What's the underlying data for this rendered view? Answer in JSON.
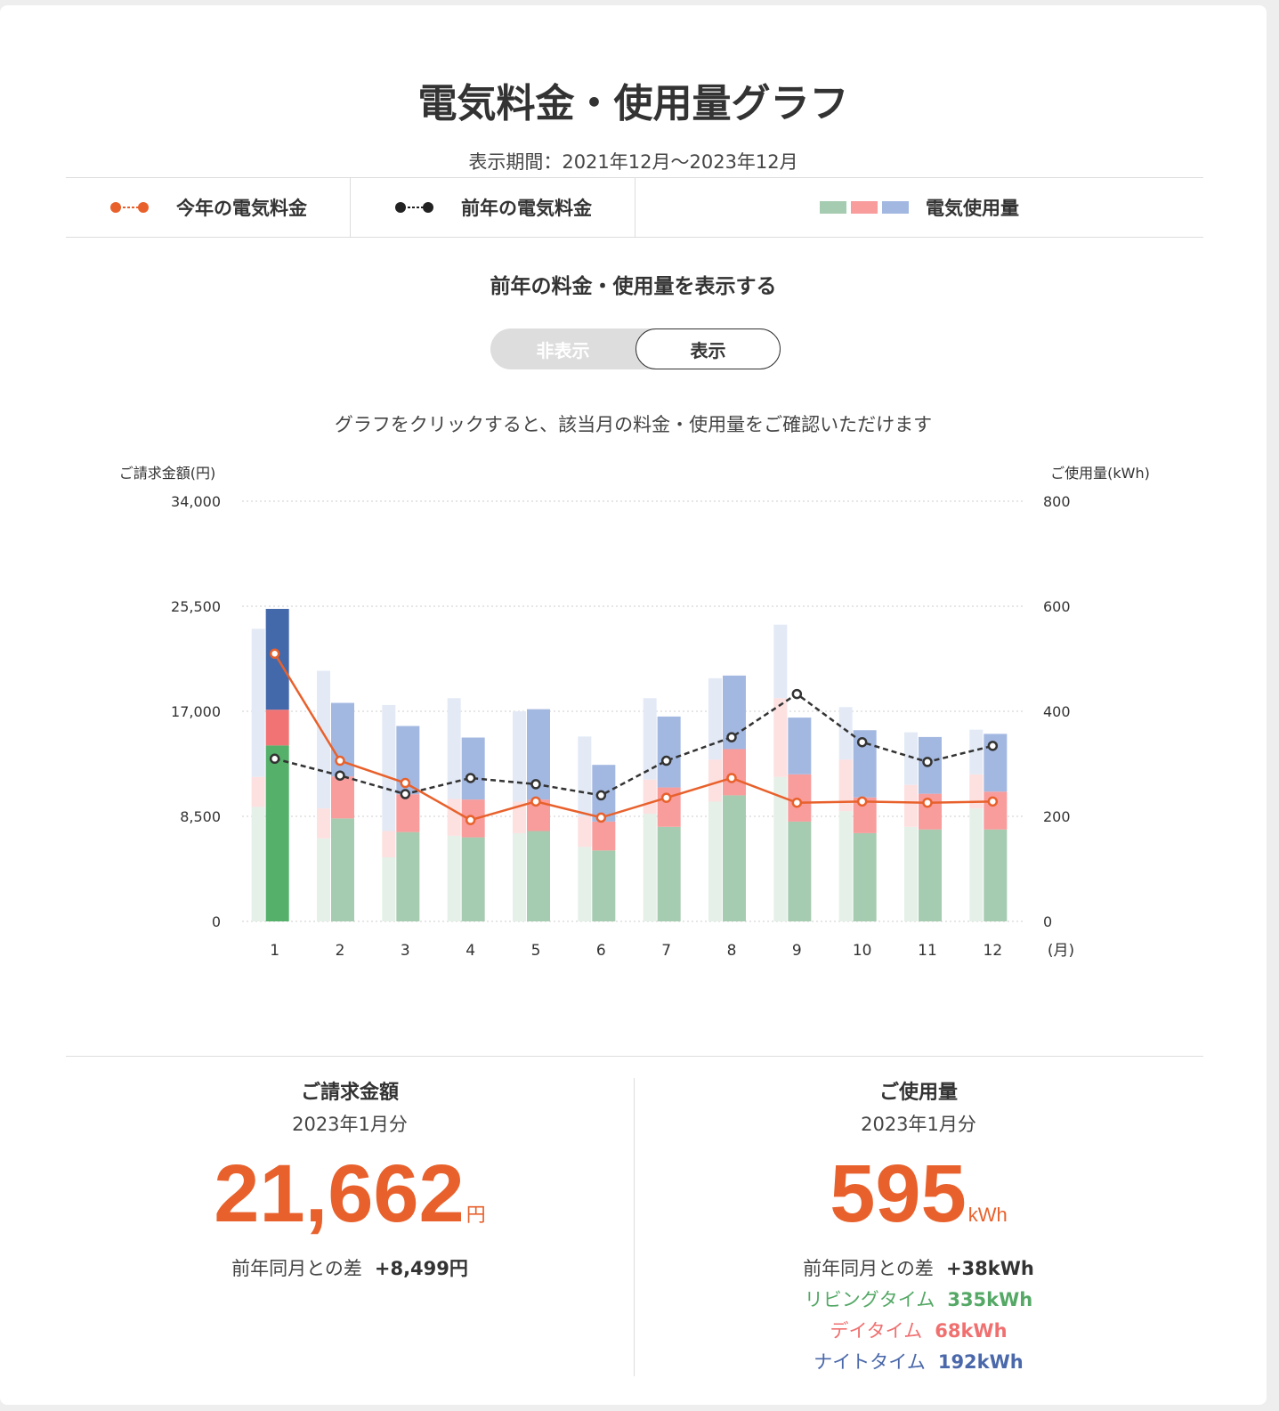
{
  "header": {
    "title": "電気料金・使用量グラフ",
    "period": "表示期間：2021年12月～2023年12月"
  },
  "legend": {
    "this_year": "今年の電気料金",
    "last_year": "前年の電気料金",
    "usage": "電気使用量"
  },
  "toggle": {
    "label": "前年の料金・使用量を表示する",
    "hide": "非表示",
    "show": "表示",
    "selected": "表示"
  },
  "hint": "グラフをクリックすると、該当月の料金・使用量をご確認いただけます",
  "colors": {
    "accent": "#e8612c",
    "living": "#a5cbb0",
    "day": "#f89c9c",
    "night": "#a3b8e1",
    "living_selected": "#55b06a",
    "day_selected": "#f27373",
    "night_selected": "#4369ab",
    "last_year_line": "#333333"
  },
  "chart_data": {
    "type": "bar",
    "ylabel_left": "ご請求金額(円)",
    "ylabel_right": "ご使用量(kWh)",
    "xunit": "(月)",
    "categories": [
      "1",
      "2",
      "3",
      "4",
      "5",
      "6",
      "7",
      "8",
      "9",
      "10",
      "11",
      "12"
    ],
    "yticks_left": [
      "0",
      "8,500",
      "17,000",
      "25,500",
      "34,000"
    ],
    "yticks_right": [
      "0",
      "200",
      "400",
      "600",
      "800"
    ],
    "ylim_left": [
      0,
      34000
    ],
    "ylim_right": [
      0,
      800
    ],
    "selected_month": "1",
    "usage_this_year": [
      {
        "name": "リビングタイム",
        "values": [
          335,
          196,
          170,
          160,
          172,
          135,
          180,
          240,
          190,
          168,
          175,
          175
        ]
      },
      {
        "name": "デイタイム",
        "values": [
          68,
          80,
          72,
          72,
          60,
          55,
          75,
          88,
          90,
          68,
          68,
          72
        ]
      },
      {
        "name": "ナイトタイム",
        "values": [
          192,
          140,
          130,
          118,
          172,
          108,
          135,
          140,
          108,
          128,
          108,
          110
        ]
      }
    ],
    "usage_last_year": [
      {
        "name": "リビングタイム",
        "values": [
          218,
          158,
          122,
          163,
          168,
          142,
          205,
          228,
          275,
          210,
          180,
          215
        ]
      },
      {
        "name": "デイタイム",
        "values": [
          57,
          57,
          50,
          70,
          60,
          58,
          65,
          80,
          150,
          98,
          80,
          65
        ]
      },
      {
        "name": "ナイトタイム",
        "values": [
          282,
          262,
          240,
          192,
          172,
          152,
          155,
          155,
          140,
          100,
          100,
          85
        ]
      }
    ],
    "series": [
      {
        "name": "今年の電気料金",
        "values": [
          21662,
          13000,
          11200,
          8200,
          9700,
          8400,
          10000,
          11600,
          9600,
          9700,
          9600,
          9700
        ]
      },
      {
        "name": "前年の電気料金",
        "values": [
          13163,
          11800,
          10300,
          11600,
          11100,
          10200,
          13000,
          14900,
          18400,
          14500,
          12900,
          14200
        ]
      }
    ]
  },
  "summary": {
    "billing": {
      "title": "ご請求金額",
      "period": "2023年1月分",
      "amount": "21,662",
      "unit": "円",
      "diff_label": "前年同月との差",
      "diff_value": "+8,499円"
    },
    "usage": {
      "title": "ご使用量",
      "period": "2023年1月分",
      "amount": "595",
      "unit": "kWh",
      "diff_label": "前年同月との差",
      "diff_value": "+38kWh",
      "living_label": "リビングタイム",
      "living_value": "335kWh",
      "day_label": "デイタイム",
      "day_value": "68kWh",
      "night_label": "ナイトタイム",
      "night_value": "192kWh"
    }
  }
}
